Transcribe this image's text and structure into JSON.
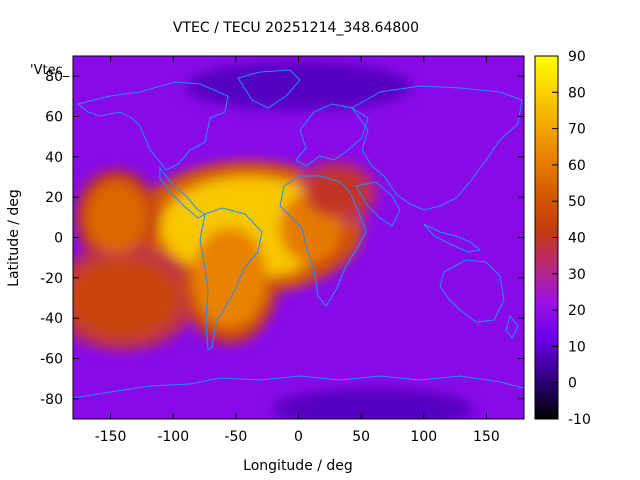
{
  "chart_data": {
    "type": "heatmap",
    "title": "VTEC / TECU 20251214_348.64800",
    "xlabel": "Longitude / deg",
    "ylabel": "Latitude / deg",
    "key_label": "'Vtec_",
    "xlim": [
      -180,
      180
    ],
    "ylim": [
      -90,
      90
    ],
    "xticks": [
      -150,
      -100,
      -50,
      0,
      50,
      100,
      150
    ],
    "yticks": [
      -80,
      -60,
      -40,
      -20,
      0,
      20,
      40,
      60,
      80
    ],
    "colorbar": {
      "min": -10,
      "max": 90,
      "ticks": [
        -10,
        0,
        10,
        20,
        30,
        40,
        50,
        60,
        70,
        80,
        90
      ],
      "palette": "gnuplot black-purple-red-orange-yellow"
    },
    "grid": false,
    "background_value": 18,
    "regions": [
      {
        "name": "equatorial-anomaly-americas-atlantic",
        "lon": -40,
        "lat": 5,
        "peak_value": 78
      },
      {
        "name": "eastern-pacific-north",
        "lon": -145,
        "lat": 10,
        "peak_value": 55
      },
      {
        "name": "south-pacific",
        "lon": -140,
        "lat": -30,
        "peak_value": 45
      },
      {
        "name": "south-america",
        "lon": -55,
        "lat": -20,
        "peak_value": 62
      },
      {
        "name": "west-africa",
        "lon": 10,
        "lat": 5,
        "peak_value": 60
      },
      {
        "name": "north-africa",
        "lon": 30,
        "lat": 22,
        "peak_value": 40
      },
      {
        "name": "arctic-low",
        "lon": 0,
        "lat": 75,
        "peak_value": 8
      },
      {
        "name": "antarctic-low",
        "lon": 60,
        "lat": -85,
        "peak_value": 8
      }
    ],
    "colors": {
      "line": "#1e90ff",
      "axis": "#000000"
    }
  }
}
